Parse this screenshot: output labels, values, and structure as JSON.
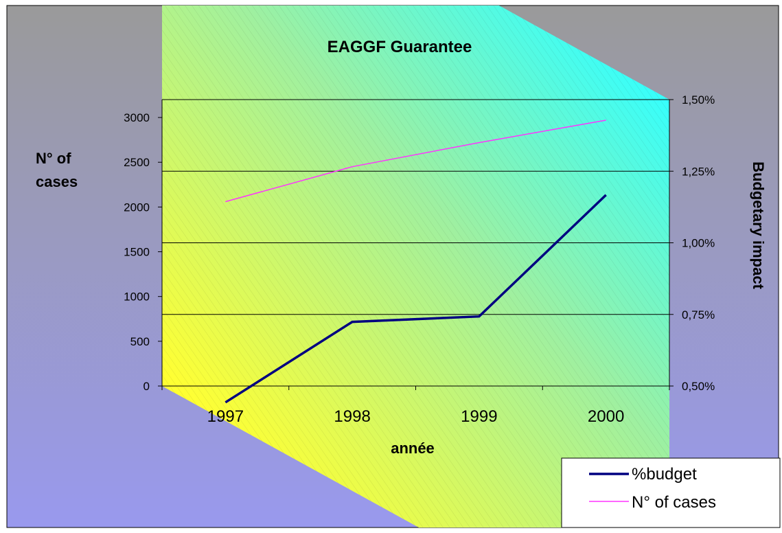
{
  "colors": {
    "background_top": "#9a9a9a",
    "background_bottom": "#9999ee",
    "plot_cyan": "#33ffff",
    "plot_yellow": "#ffff33",
    "budget_line": "#000080",
    "cases_line": "#ff33ff",
    "gridline": "#000000"
  },
  "chart_data": {
    "type": "line",
    "title": "EAGGF Guarantee",
    "xlabel": "année",
    "ylabel_left": "N° of cases",
    "ylabel_right": "Budgetary impact",
    "categories": [
      "1997",
      "1998",
      "1999",
      "2000"
    ],
    "left_axis": {
      "range": [
        0,
        3200
      ],
      "ticks": [
        0,
        500,
        1000,
        1500,
        2000,
        2500,
        3000
      ],
      "tick_labels": [
        "0",
        "500",
        "1000",
        "1500",
        "2000",
        "2500",
        "3000"
      ]
    },
    "right_axis": {
      "range": [
        0.005,
        0.015
      ],
      "ticks": [
        0.005,
        0.0075,
        0.01,
        0.0125,
        0.015
      ],
      "tick_labels": [
        "0,50%",
        "0,75%",
        "1,00%",
        "1,25%",
        "1,50%"
      ]
    },
    "gridlines": "horizontal, right axis",
    "legend_position": "bottom-right",
    "series": [
      {
        "name": "%budget",
        "axis": "right",
        "values": [
          0.00443,
          0.00724,
          0.00743,
          0.01167
        ]
      },
      {
        "name": "N° of cases",
        "axis": "left",
        "values": [
          2060,
          2450,
          2720,
          2970
        ]
      }
    ]
  }
}
